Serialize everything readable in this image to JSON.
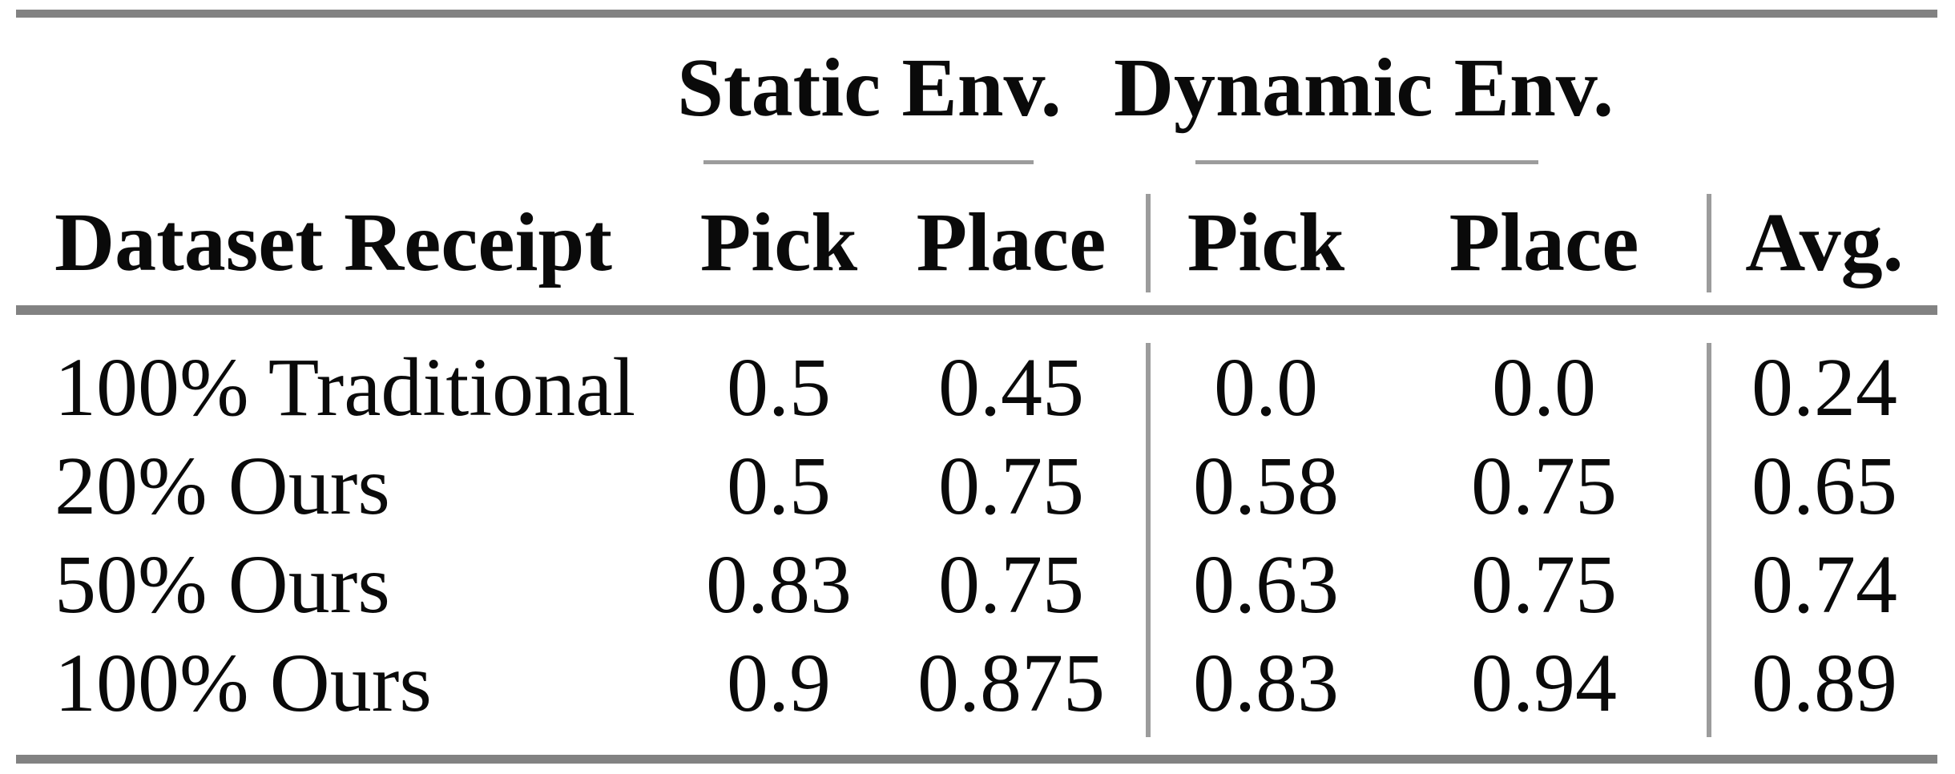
{
  "table": {
    "col_groups": [
      {
        "label": "Static Env."
      },
      {
        "label": "Dynamic Env."
      }
    ],
    "headers": {
      "receipt": "Dataset Receipt",
      "static_pick": "Pick",
      "static_place": "Place",
      "dynamic_pick": "Pick",
      "dynamic_place": "Place",
      "avg": "Avg."
    },
    "rows": [
      {
        "receipt": "100% Traditional",
        "static_pick": "0.5",
        "static_place": "0.45",
        "dynamic_pick": "0.0",
        "dynamic_place": "0.0",
        "avg": "0.24"
      },
      {
        "receipt": "20% Ours",
        "static_pick": "0.5",
        "static_place": "0.75",
        "dynamic_pick": "0.58",
        "dynamic_place": "0.75",
        "avg": "0.65"
      },
      {
        "receipt": "50% Ours",
        "static_pick": "0.83",
        "static_place": "0.75",
        "dynamic_pick": "0.63",
        "dynamic_place": "0.75",
        "avg": "0.74"
      },
      {
        "receipt": "100% Ours",
        "static_pick": "0.9",
        "static_place": "0.875",
        "dynamic_pick": "0.83",
        "dynamic_place": "0.94",
        "avg": "0.89"
      }
    ],
    "colors": {
      "rule_heavy": "#828282",
      "rule_light": "#9c9c9c",
      "text": "#0a0a0a",
      "background": "#ffffff"
    }
  }
}
